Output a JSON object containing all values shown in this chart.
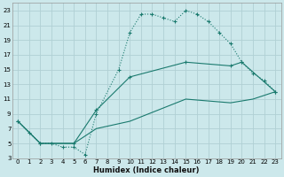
{
  "xlabel": "Humidex (Indice chaleur)",
  "bg_color": "#cce8eb",
  "grid_color": "#b0d0d4",
  "line_color": "#1a7a6e",
  "xlim": [
    -0.5,
    23.5
  ],
  "ylim": [
    3,
    24
  ],
  "xticks": [
    0,
    1,
    2,
    3,
    4,
    5,
    6,
    7,
    8,
    9,
    10,
    11,
    12,
    13,
    14,
    15,
    16,
    17,
    18,
    19,
    20,
    21,
    22,
    23
  ],
  "yticks": [
    3,
    5,
    7,
    9,
    11,
    13,
    15,
    17,
    19,
    21,
    23
  ],
  "curve1_x": [
    0,
    1,
    2,
    3,
    4,
    5,
    6,
    7,
    9,
    10,
    11,
    12,
    13,
    14,
    15,
    16,
    17,
    18,
    19,
    20,
    21,
    22,
    23
  ],
  "curve1_y": [
    8,
    6.5,
    5,
    5,
    4.5,
    4.5,
    3.5,
    9,
    15,
    20,
    22.5,
    22.5,
    22,
    21.5,
    23,
    22.5,
    21.5,
    20,
    18.5,
    16,
    14.5,
    13.5,
    12
  ],
  "curve2_x": [
    0,
    2,
    5,
    7,
    10,
    15,
    19,
    20,
    23
  ],
  "curve2_y": [
    8,
    5,
    5,
    9.5,
    14,
    16,
    15.5,
    16,
    12
  ],
  "curve3_x": [
    0,
    2,
    5,
    7,
    10,
    15,
    19,
    21,
    23
  ],
  "curve3_y": [
    8,
    5,
    5,
    7,
    8,
    11,
    10.5,
    11,
    12
  ]
}
